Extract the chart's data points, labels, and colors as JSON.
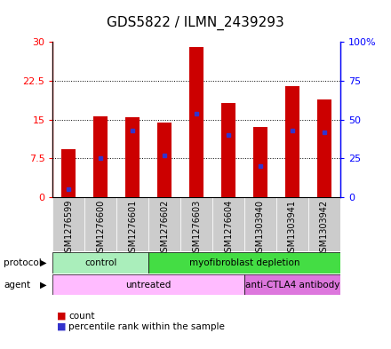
{
  "title": "GDS5822 / ILMN_2439293",
  "samples": [
    "GSM1276599",
    "GSM1276600",
    "GSM1276601",
    "GSM1276602",
    "GSM1276603",
    "GSM1276604",
    "GSM1303940",
    "GSM1303941",
    "GSM1303942"
  ],
  "bar_heights": [
    9.2,
    15.7,
    15.4,
    14.5,
    29.0,
    18.2,
    13.5,
    21.5,
    18.8
  ],
  "percentile_values": [
    5.0,
    25.0,
    43.0,
    27.0,
    54.0,
    40.0,
    20.0,
    43.0,
    42.0
  ],
  "bar_color": "#cc0000",
  "percentile_color": "#3333cc",
  "left_ylim": [
    0,
    30
  ],
  "right_ylim": [
    0,
    100
  ],
  "left_yticks": [
    0,
    7.5,
    15,
    22.5,
    30
  ],
  "left_yticklabels": [
    "0",
    "7.5",
    "15",
    "22.5",
    "30"
  ],
  "right_yticks": [
    0,
    25,
    50,
    75,
    100
  ],
  "right_yticklabels": [
    "0",
    "25",
    "50",
    "75",
    "100%"
  ],
  "grid_values": [
    7.5,
    15,
    22.5
  ],
  "protocol_groups": [
    {
      "label": "control",
      "start": 0,
      "end": 3,
      "color": "#aaeebb"
    },
    {
      "label": "myofibroblast depletion",
      "start": 3,
      "end": 9,
      "color": "#44dd44"
    }
  ],
  "agent_groups": [
    {
      "label": "untreated",
      "start": 0,
      "end": 6,
      "color": "#ffbbff"
    },
    {
      "label": "anti-CTLA4 antibody",
      "start": 6,
      "end": 9,
      "color": "#dd77dd"
    }
  ],
  "legend_items": [
    {
      "label": "count",
      "color": "#cc0000"
    },
    {
      "label": "percentile rank within the sample",
      "color": "#3333cc"
    }
  ],
  "xtick_bg": "#cccccc",
  "title_fontsize": 11,
  "tick_fontsize": 8,
  "xtick_fontsize": 7
}
